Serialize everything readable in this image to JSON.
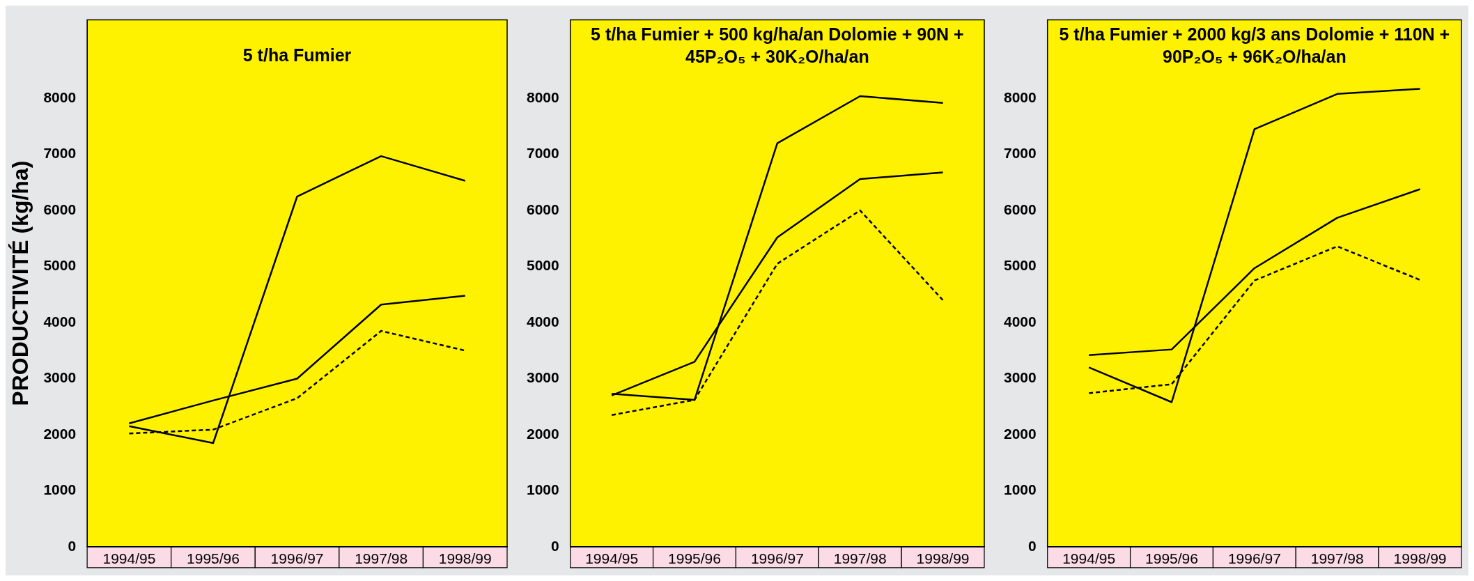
{
  "chart_data": [
    {
      "type": "line",
      "title": "5 t/ha Fumier",
      "ylabel": "PRODUCTIVITÉ (kg/ha)",
      "categories": [
        "1994/95",
        "1995/96",
        "1996/97",
        "1997/98",
        "1998/99"
      ],
      "ylim": [
        0,
        9400
      ],
      "yticks": [
        0,
        1000,
        2000,
        3000,
        4000,
        5000,
        6000,
        7000,
        8000
      ],
      "grid": false,
      "legend": false,
      "marker": "none",
      "series": [
        {
          "color": "#000000",
          "line_style": "solid",
          "values": [
            2150,
            1850,
            6250,
            6970,
            6530
          ]
        },
        {
          "color": "#000000",
          "line_style": "solid",
          "values": [
            2200,
            2610,
            3000,
            4320,
            4480
          ]
        },
        {
          "color": "#000000",
          "line_style": "dashed",
          "values": [
            2020,
            2090,
            2650,
            3850,
            3500
          ]
        }
      ]
    },
    {
      "type": "line",
      "title": "5 t/ha Fumier + 500 kg/ha/an Dolomie + 90N + 45P₂O₅ + 30K₂O/ha/an",
      "categories": [
        "1994/95",
        "1995/96",
        "1996/97",
        "1997/98",
        "1998/99"
      ],
      "ylim": [
        0,
        9400
      ],
      "yticks": [
        0,
        1000,
        2000,
        3000,
        4000,
        5000,
        6000,
        7000,
        8000
      ],
      "grid": false,
      "legend": false,
      "marker": "none",
      "series": [
        {
          "color": "#000000",
          "line_style": "solid",
          "values": [
            2730,
            2620,
            7200,
            8040,
            7920
          ]
        },
        {
          "color": "#000000",
          "line_style": "solid",
          "values": [
            2700,
            3300,
            5520,
            6560,
            6680
          ]
        },
        {
          "color": "#000000",
          "line_style": "dashed",
          "values": [
            2350,
            2620,
            5050,
            6000,
            4400
          ]
        }
      ]
    },
    {
      "type": "line",
      "title": "5 t/ha Fumier + 2000 kg/3 ans Dolomie + 110N + 90P₂O₅ + 96K₂O/ha/an",
      "categories": [
        "1994/95",
        "1995/96",
        "1996/97",
        "1997/98",
        "1998/99"
      ],
      "ylim": [
        0,
        9400
      ],
      "yticks": [
        0,
        1000,
        2000,
        3000,
        4000,
        5000,
        6000,
        7000,
        8000
      ],
      "grid": false,
      "legend": false,
      "marker": "none",
      "series": [
        {
          "color": "#000000",
          "line_style": "solid",
          "values": [
            3200,
            2580,
            7450,
            8080,
            8170
          ]
        },
        {
          "color": "#000000",
          "line_style": "solid",
          "values": [
            3420,
            3520,
            4970,
            5870,
            6380
          ]
        },
        {
          "color": "#000000",
          "line_style": "dashed",
          "values": [
            2740,
            2900,
            4750,
            5360,
            4760
          ]
        }
      ]
    }
  ]
}
